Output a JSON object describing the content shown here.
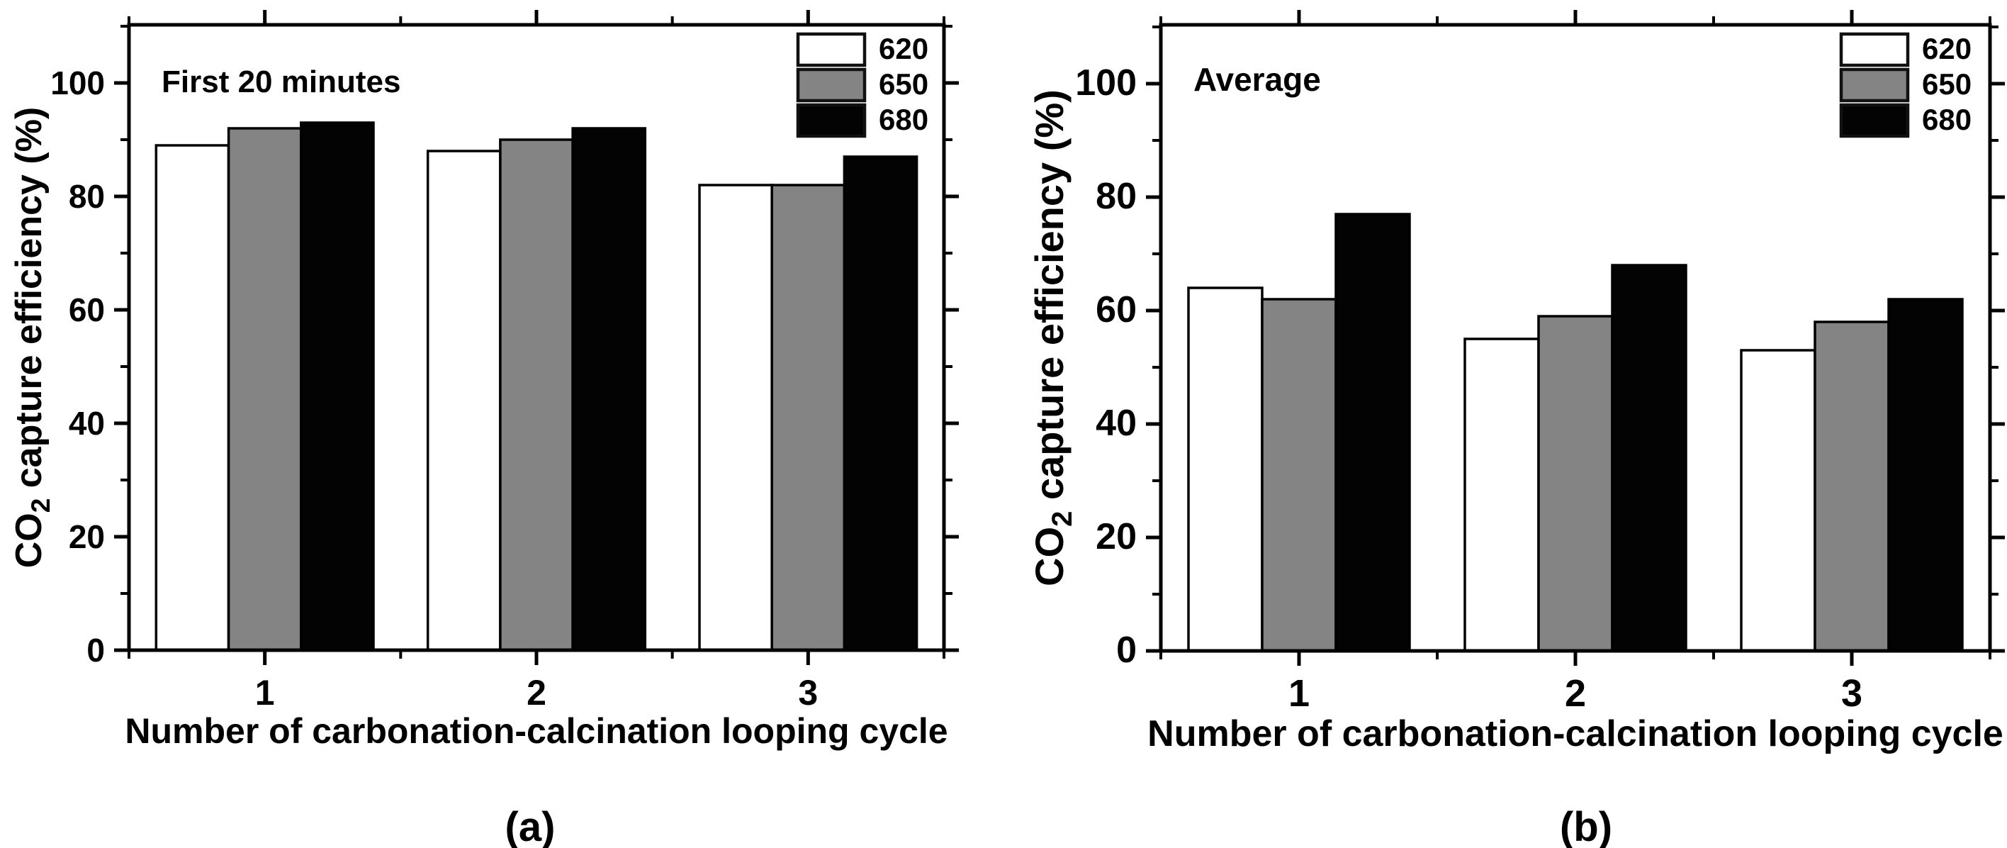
{
  "figure": {
    "background": "#ffffff",
    "frame_color": "#000000",
    "captions": [
      "(a)",
      "(b)"
    ]
  },
  "chart_data": [
    {
      "type": "bar",
      "panel": "a",
      "title": "First 20 minutes",
      "caption": "(a)",
      "categories": [
        "1",
        "2",
        "3"
      ],
      "series": [
        {
          "name": "620",
          "color": "#ffffff",
          "values": [
            89,
            88,
            82
          ]
        },
        {
          "name": "650",
          "color": "#848484",
          "values": [
            92,
            90,
            82
          ]
        },
        {
          "name": "680",
          "color": "#030303",
          "values": [
            93,
            92,
            87
          ]
        }
      ],
      "xlabel": "Number of carbonation-calcination looping cycle",
      "ylabel": "CO2 capture efficiency (%)",
      "ylabel_rich": {
        "pre": "CO",
        "sub": "2",
        "post": " capture efficiency (%)"
      },
      "ylim": [
        0,
        110
      ],
      "yticks_major": [
        0,
        20,
        40,
        60,
        80,
        100
      ],
      "ytick_minor_step": 10,
      "xticks_major": [
        1,
        2,
        3
      ],
      "xticks_minor": [
        0.5,
        1.5,
        2.5,
        3.5
      ],
      "legend_entries": [
        "620",
        "650",
        "680"
      ],
      "legend_position": "top-right",
      "grid": false,
      "bar_edge_color": "#000000"
    },
    {
      "type": "bar",
      "panel": "b",
      "title": "Average",
      "caption": "(b)",
      "categories": [
        "1",
        "2",
        "3"
      ],
      "series": [
        {
          "name": "620",
          "color": "#ffffff",
          "values": [
            64,
            55,
            53
          ]
        },
        {
          "name": "650",
          "color": "#848484",
          "values": [
            62,
            59,
            58
          ]
        },
        {
          "name": "680",
          "color": "#030303",
          "values": [
            77,
            68,
            62
          ]
        }
      ],
      "xlabel": "Number of carbonation-calcination looping cycle",
      "ylabel": "CO2 capture efficiency (%)",
      "ylabel_rich": {
        "pre": "CO",
        "sub": "2",
        "post": " capture efficiency (%)"
      },
      "ylim": [
        0,
        110
      ],
      "yticks_major": [
        0,
        20,
        40,
        60,
        80,
        100
      ],
      "ytick_minor_step": 10,
      "xticks_major": [
        1,
        2,
        3
      ],
      "xticks_minor": [
        0.5,
        1.5,
        2.5,
        3.5
      ],
      "legend_entries": [
        "620",
        "650",
        "680"
      ],
      "legend_position": "top-right",
      "grid": false,
      "bar_edge_color": "#000000"
    }
  ]
}
